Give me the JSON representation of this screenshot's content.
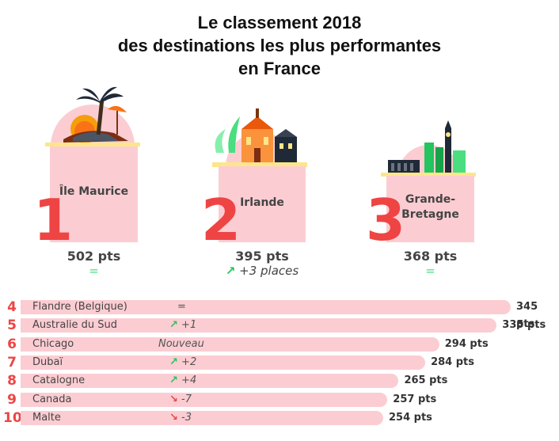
{
  "title": {
    "line1": "Le classement 2018",
    "line2": "des destinations les plus performantes",
    "line3": "en France"
  },
  "podium": [
    {
      "rank": "1",
      "destination": "Île Maurice",
      "points": "502 pts",
      "change": "="
    },
    {
      "rank": "2",
      "destination": "Irlande",
      "points": "395 pts",
      "change": "+3 places",
      "trend": "up"
    },
    {
      "rank": "3",
      "destination_line1": "Grande-",
      "destination_line2": "Bretagne",
      "points": "368 pts",
      "change": "="
    }
  ],
  "icons": {
    "podium1": "palm-tree-island-icon",
    "podium2": "irish-village-icon",
    "podium3": "london-skyline-icon",
    "trend_up": "arrow-up-right-icon",
    "trend_down": "arrow-down-right-icon"
  },
  "colors": {
    "bar": "#fbcdd2",
    "rank_number": "#ef4444",
    "trend_up": "#22c55e",
    "trend_down": "#ef4444"
  },
  "ranking": [
    {
      "rank": "4",
      "destination": "Flandre (Belgique)",
      "change": "=",
      "trend": "none",
      "points": "345 pts"
    },
    {
      "rank": "5",
      "destination": "Australie du Sud",
      "change": "+1",
      "trend": "up",
      "points": "335 pts"
    },
    {
      "rank": "6",
      "destination": "Chicago",
      "change": "Nouveau",
      "trend": "none",
      "points": "294 pts"
    },
    {
      "rank": "7",
      "destination": "Dubaï",
      "change": "+2",
      "trend": "up",
      "points": "284 pts"
    },
    {
      "rank": "8",
      "destination": "Catalogne",
      "change": "+4",
      "trend": "up",
      "points": "265 pts"
    },
    {
      "rank": "9",
      "destination": "Canada",
      "change": "-7",
      "trend": "down",
      "points": "257 pts"
    },
    {
      "rank": "10",
      "destination": "Malte",
      "change": "-3",
      "trend": "down",
      "points": "254 pts"
    }
  ],
  "chart_data": {
    "type": "bar",
    "title": "Le classement 2018 des destinations les plus performantes en France",
    "categories": [
      "Île Maurice",
      "Irlande",
      "Grande-Bretagne",
      "Flandre (Belgique)",
      "Australie du Sud",
      "Chicago",
      "Dubaï",
      "Catalogne",
      "Canada",
      "Malte"
    ],
    "values": [
      502,
      395,
      368,
      345,
      335,
      294,
      284,
      265,
      257,
      254
    ],
    "unit": "pts",
    "ranks": [
      1,
      2,
      3,
      4,
      5,
      6,
      7,
      8,
      9,
      10
    ],
    "changes": [
      "=",
      "+3 places",
      "=",
      "=",
      "+1",
      "Nouveau",
      "+2",
      "+4",
      "-7",
      "-3"
    ]
  }
}
